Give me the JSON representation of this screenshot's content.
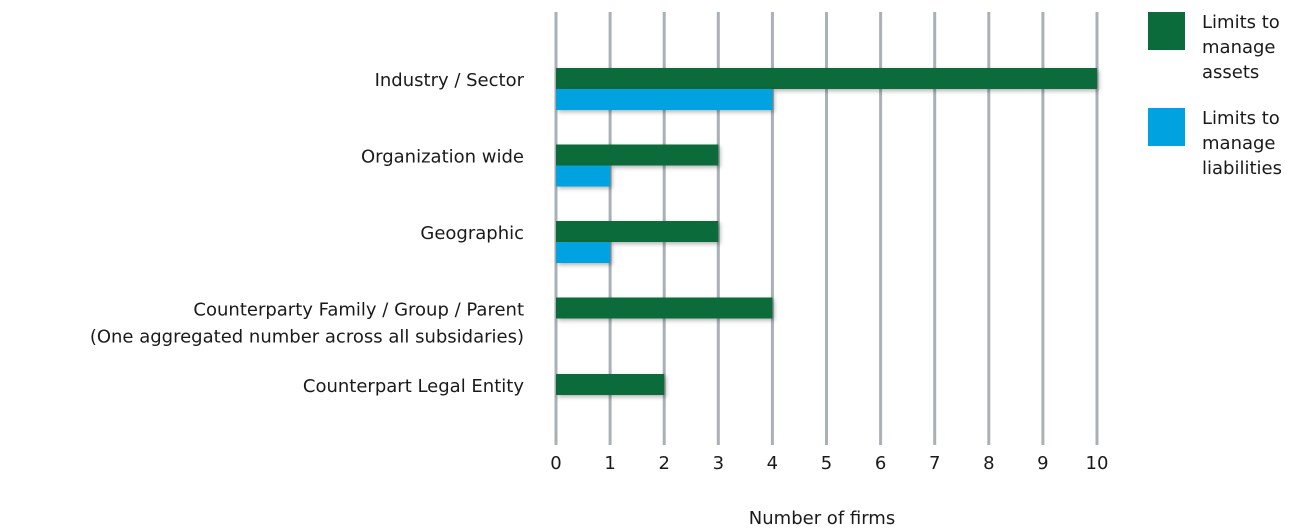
{
  "chart_data": {
    "type": "hbar",
    "categories": [
      "Industry / Sector",
      "Organization wide",
      "Geographic",
      "Counterparty Family / Group / Parent\n(One aggregated number across all subsidaries)",
      "Counterpart Legal Entity"
    ],
    "series": [
      {
        "name": "Limits to manage assets",
        "color": "#0b6b3a",
        "values": [
          10,
          3,
          3,
          4,
          2
        ]
      },
      {
        "name": "Limits to manage liabilities",
        "color": "#00a3e0",
        "values": [
          4,
          1,
          1,
          null,
          null
        ]
      }
    ],
    "xlabel": "Number of firms",
    "xlim": [
      0,
      10
    ],
    "xticks": [
      0,
      1,
      2,
      3,
      4,
      5,
      6,
      7,
      8,
      9,
      10
    ],
    "grid": true,
    "legend": "upper right"
  }
}
